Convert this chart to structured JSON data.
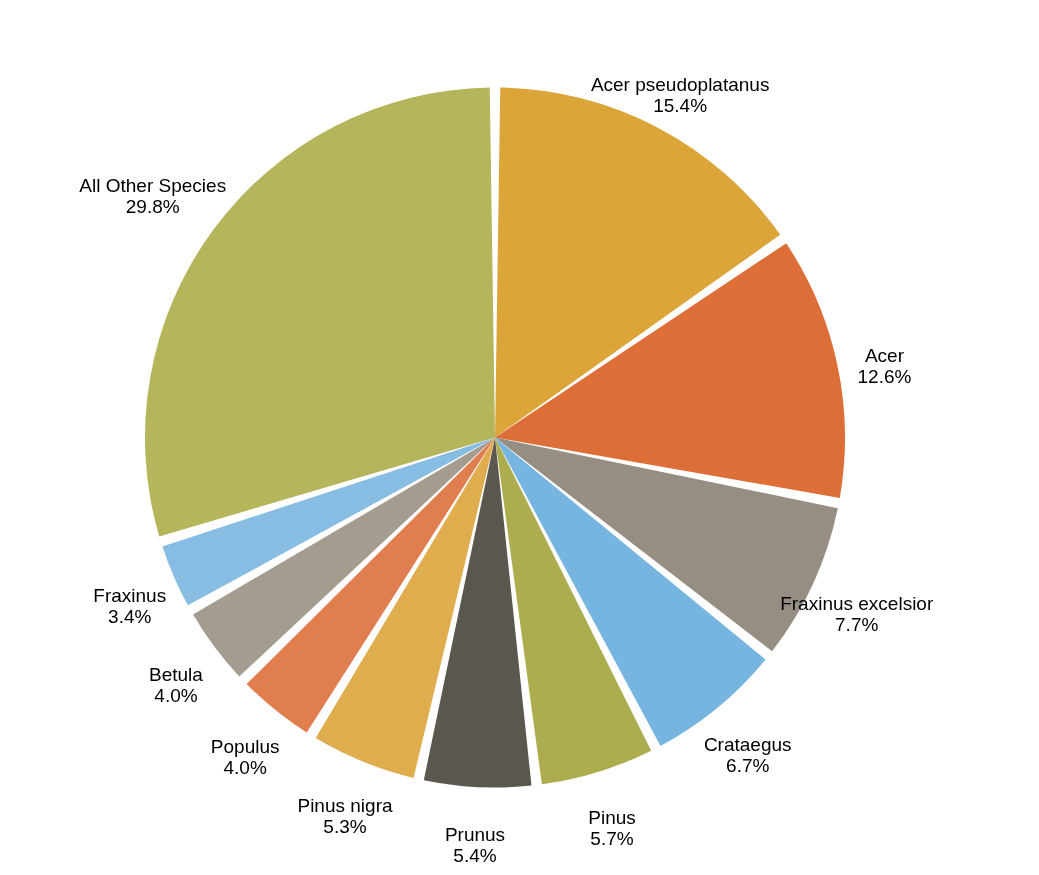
{
  "chart_data": {
    "type": "pie",
    "categories": [
      "Acer pseudoplatanus",
      "Acer",
      "Fraxinus excelsior",
      "Crataegus",
      "Pinus",
      "Prunus",
      "Pinus nigra",
      "Populus",
      "Betula",
      "Fraxinus",
      "All Other Species"
    ],
    "values": [
      15.4,
      12.6,
      7.7,
      6.7,
      5.7,
      5.4,
      5.3,
      4.0,
      4.0,
      3.4,
      29.8
    ],
    "colors": [
      "#dba53a",
      "#dd6e37",
      "#968d83",
      "#77b5e1",
      "#adad50",
      "#5b574f",
      "#e0ad4e",
      "#e07e50",
      "#a59c90",
      "#88bde3",
      "#b5b55c"
    ],
    "value_labels": [
      "15.4%",
      "12.6%",
      "7.7%",
      "6.7%",
      "5.7%",
      "5.4%",
      "5.3%",
      "4.0%",
      "4.0%",
      "3.4%",
      "29.8%"
    ],
    "legend": false
  }
}
